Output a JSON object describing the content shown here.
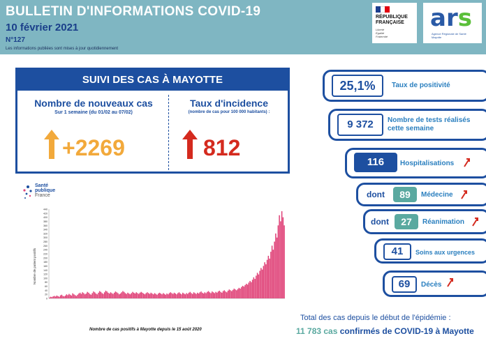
{
  "header": {
    "title": "BULLETIN D'INFORMATIONS COVID-19",
    "date": "10 février 2021",
    "number": "N°127",
    "note": "Les informations publiées sont mises à jour quotidiennement"
  },
  "logos": {
    "rf_line1": "RÉPUBLIQUE",
    "rf_line2": "FRANÇAISE",
    "rf_motto1": "Liberté",
    "rf_motto2": "Égalité",
    "rf_motto3": "Fraternité",
    "ars_a": "ar",
    "ars_s": "s",
    "ars_sub1": "Agence Régionale de Santé",
    "ars_sub2": "Mayotte"
  },
  "suivi": {
    "title": "SUIVI DES CAS À MAYOTTE",
    "new_cases_title": "Nombre de nouveaux cas",
    "new_cases_sub": "Sur 1 semaine (du 01/02 au 07/02)",
    "new_cases_value": "+2269",
    "incidence_title": "Taux d'incidence",
    "incidence_sub": "(nombre de cas pour 100 000 habitants) :",
    "incidence_value": "812"
  },
  "stats": {
    "positivite_value": "25,1%",
    "positivite_label": "Taux de positivité",
    "tests_value": "9 372",
    "tests_label1": "Nombre de tests réalisés",
    "tests_label2": "cette semaine",
    "hosp_value": "116",
    "hosp_label": "Hospitalisations",
    "dont1": "dont",
    "medecine_value": "89",
    "medecine_label": "Médecine",
    "dont2": "dont",
    "rea_value": "27",
    "rea_label": "Réanimation",
    "urgences_value": "41",
    "urgences_label": "Soins aux urgences",
    "deces_value": "69",
    "deces_label": "Décès"
  },
  "santepublique": {
    "line1": "Santé",
    "line2": "publique",
    "line3": "France"
  },
  "chart_caption": "Nombre de cas positifs à Mayotte depuis le 15 août 2020",
  "totals": {
    "line1": "Total des cas depuis le début de l'épidémie :",
    "count": "11 783 cas",
    "line2": "confirmés de COVID-19 à Mayotte"
  },
  "colors": {
    "header_bg": "#7fb6c2",
    "brand_blue": "#1d4fa0",
    "bar_color": "#e0457a",
    "orange_arrow": "#f2a93b",
    "red_arrow": "#d42a1e",
    "teal": "#5aa9a0"
  },
  "chart_data": {
    "type": "bar",
    "ylabel": "Nombre de patient positifs",
    "ylim": [
      0,
      440
    ],
    "yticks": [
      0,
      20,
      40,
      60,
      80,
      100,
      120,
      140,
      160,
      180,
      200,
      220,
      240,
      260,
      280,
      300,
      320,
      340,
      360,
      380,
      400,
      420,
      440
    ],
    "values": [
      4,
      8,
      6,
      10,
      12,
      9,
      14,
      11,
      8,
      15,
      18,
      12,
      10,
      14,
      20,
      16,
      22,
      18,
      14,
      25,
      20,
      16,
      12,
      18,
      24,
      28,
      22,
      30,
      26,
      20,
      24,
      32,
      28,
      22,
      18,
      26,
      34,
      30,
      24,
      20,
      28,
      36,
      32,
      26,
      22,
      30,
      38,
      34,
      28,
      24,
      30,
      26,
      22,
      28,
      34,
      30,
      26,
      20,
      24,
      30,
      36,
      32,
      26,
      22,
      28,
      24,
      20,
      26,
      32,
      28,
      24,
      30,
      26,
      22,
      28,
      32,
      28,
      24,
      20,
      26,
      30,
      26,
      22,
      28,
      24,
      20,
      26,
      22,
      18,
      24,
      28,
      24,
      20,
      26,
      22,
      18,
      24,
      20,
      26,
      30,
      26,
      22,
      28,
      24,
      20,
      26,
      30,
      24,
      20,
      28,
      24,
      20,
      26,
      22,
      28,
      32,
      26,
      22,
      30,
      26,
      22,
      28,
      24,
      30,
      34,
      28,
      24,
      30,
      26,
      32,
      36,
      30,
      26,
      34,
      30,
      26,
      32,
      28,
      34,
      38,
      32,
      28,
      36,
      40,
      34,
      30,
      38,
      44,
      40,
      36,
      42,
      48,
      44,
      40,
      46,
      52,
      48,
      56,
      62,
      58,
      66,
      72,
      68,
      78,
      86,
      80,
      92,
      104,
      96,
      112,
      126,
      118,
      136,
      150,
      142,
      160,
      178,
      168,
      190,
      210,
      196,
      230,
      260,
      240,
      280,
      320,
      300,
      360,
      410,
      380,
      430,
      400,
      360
    ]
  }
}
